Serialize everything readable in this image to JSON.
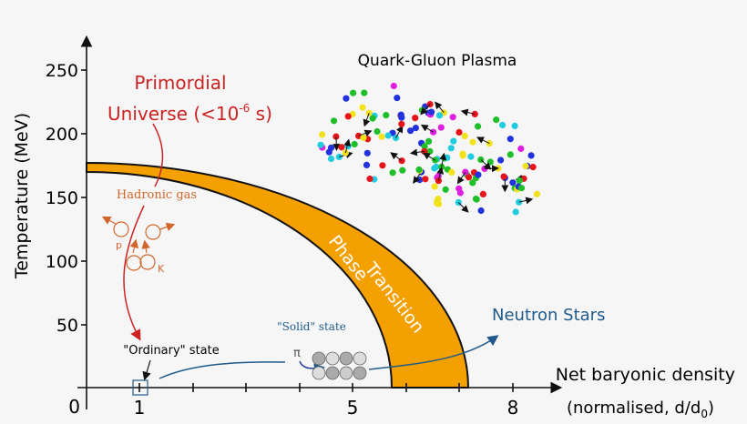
{
  "axes": {
    "y_label": "Temperature (MeV)",
    "y_ticks": [
      "250",
      "200",
      "150",
      "100",
      "50"
    ],
    "x_label": "Net baryonic density",
    "x_sublabel": "(normalised, d/d",
    "x_sublabel_sub": "0",
    "x_sublabel_end": ")",
    "origin": "0",
    "x_ticks": [
      "1",
      "5",
      "8"
    ]
  },
  "labels": {
    "primordial_line1": "Primordial",
    "primordial_line2": "Universe (<10",
    "primordial_exp": "-6",
    "primordial_end": " s)",
    "hadronic_gas": "Hadronic gas",
    "proton": "p",
    "kaon": "K",
    "phase_line1": "Phase",
    "phase_line2": "Transition",
    "qgp": "Quark-Gluon Plasma",
    "neutron_stars": "Neutron Stars",
    "solid_state": "\"Solid\" state",
    "pion": "π",
    "ordinary_state": "\"Ordinary\" state"
  },
  "colors": {
    "phase_band": "#f4a000",
    "primordial": "#cc2222",
    "hadronic": "#d2662a",
    "neutron": "#1f5a8a",
    "quarks": [
      "#e8141c",
      "#1fbf2a",
      "#2233dd",
      "#22cce0",
      "#f2e21c",
      "#e020e0"
    ]
  }
}
